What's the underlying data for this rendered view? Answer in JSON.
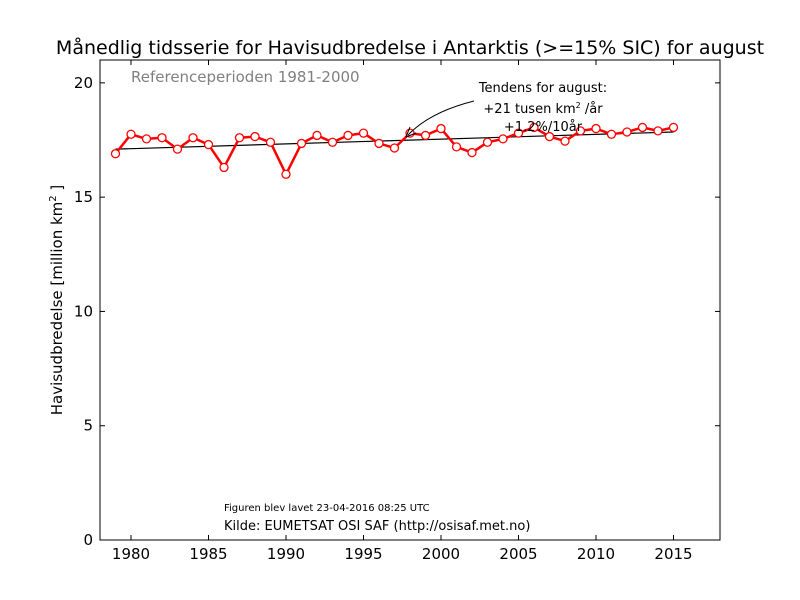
{
  "chart_data": {
    "type": "line",
    "title": "Månedlig tidsserie for Havisudbredelse i Antarktis (>=15% SIC) for august",
    "subtitle": "Referenceperioden 1981-2000",
    "xlabel": "",
    "ylabel_main": "Havisudbredelse [million km",
    "ylabel_sup": "2",
    "ylabel_end": " ]",
    "xlim": [
      1978,
      2018
    ],
    "ylim": [
      0,
      21
    ],
    "x_ticks": [
      1980,
      1985,
      1990,
      1995,
      2000,
      2005,
      2010,
      2015
    ],
    "y_ticks": [
      0,
      5,
      10,
      15,
      20
    ],
    "grid": false,
    "series": [
      {
        "color": "#ff0000",
        "x": [
          1979,
          1980,
          1981,
          1982,
          1983,
          1984,
          1985,
          1986,
          1987,
          1988,
          1989,
          1990,
          1991,
          1992,
          1993,
          1994,
          1995,
          1996,
          1997,
          1998,
          1999,
          2000,
          2001,
          2002,
          2003,
          2004,
          2005,
          2006,
          2007,
          2008,
          2009,
          2010,
          2011,
          2012,
          2013,
          2014,
          2015
        ],
        "values": [
          16.9,
          17.75,
          17.55,
          17.6,
          17.1,
          17.6,
          17.3,
          16.3,
          17.6,
          17.65,
          17.4,
          16.0,
          17.35,
          17.7,
          17.4,
          17.7,
          17.8,
          17.35,
          17.15,
          17.8,
          17.7,
          18.0,
          17.2,
          16.95,
          17.4,
          17.55,
          17.8,
          18.05,
          17.65,
          17.45,
          17.9,
          18.0,
          17.75,
          17.85,
          18.05,
          17.9,
          18.05
        ]
      }
    ],
    "trend": {
      "color": "#000000",
      "x": [
        1979,
        2015
      ],
      "y": [
        17.1,
        17.85
      ]
    },
    "annotation": {
      "line1": "Tendens for august:",
      "line2a": "+21 tusen km",
      "line2sup": "2",
      "line2b": " /år",
      "line3": "+1.2%/10år"
    },
    "footer": {
      "created": "Figuren blev lavet 23-04-2016 08:25 UTC",
      "source": "Kilde: EUMETSAT OSI SAF (http://osisaf.met.no)"
    }
  }
}
